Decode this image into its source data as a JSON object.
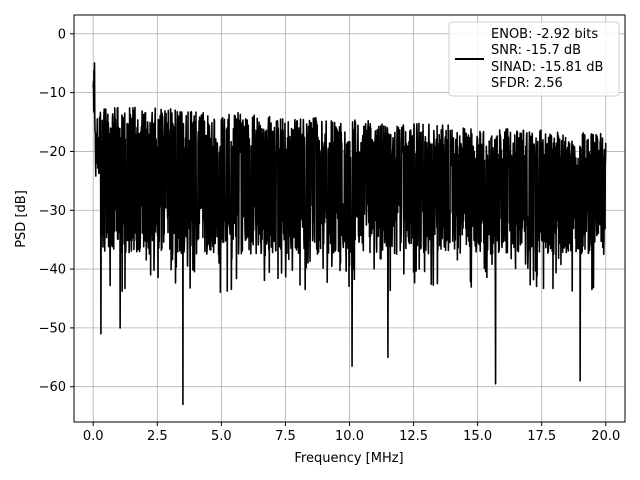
{
  "chart_data": {
    "type": "line",
    "title": "",
    "xlabel": "Frequency [MHz]",
    "ylabel": "PSD [dB]",
    "xlim": [
      -0.75,
      20.75
    ],
    "ylim": [
      -66,
      3.2
    ],
    "x_ticks": [
      0.0,
      2.5,
      5.0,
      7.5,
      10.0,
      12.5,
      15.0,
      17.5,
      20.0
    ],
    "x_tick_labels": [
      "0.0",
      "2.5",
      "5.0",
      "7.5",
      "10.0",
      "12.5",
      "15.0",
      "17.5",
      "20.0"
    ],
    "y_ticks": [
      0,
      -10,
      -20,
      -30,
      -40,
      -50,
      -60
    ],
    "y_tick_labels": [
      "0",
      "−10",
      "−20",
      "−30",
      "−40",
      "−50",
      "−60"
    ],
    "grid": true,
    "line_color": "#000000",
    "legend": {
      "placement": "upper-right",
      "entries": [
        "ENOB: -2.92 bits",
        "SNR: -15.7 dB",
        "SINAD: -15.81 dB",
        "SFDR: 2.56"
      ]
    },
    "series": [
      {
        "x_range": [
          0,
          20
        ],
        "points": 2001,
        "envelope": {
          "start_peak": -1.5,
          "upper_band_start": -12,
          "upper_band_end": -17,
          "lower_band_typical": -33
        },
        "notable_minima": [
          {
            "x": 0.3,
            "y": -51
          },
          {
            "x": 1.05,
            "y": -50
          },
          {
            "x": 3.5,
            "y": -63
          },
          {
            "x": 10.1,
            "y": -56.5
          },
          {
            "x": 11.5,
            "y": -55
          },
          {
            "x": 15.7,
            "y": -59.5
          },
          {
            "x": 19.0,
            "y": -59
          }
        ]
      }
    ]
  }
}
